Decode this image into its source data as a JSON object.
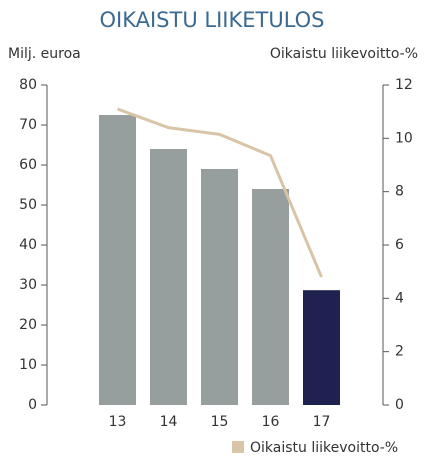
{
  "chart_data": {
    "type": "bar",
    "title": "OIKAISTU LIIKETULOS",
    "y_label": "Milj. euroa",
    "y2_label": "Oikaistu liikevoitto-%",
    "categories": [
      "13",
      "14",
      "15",
      "16",
      "17"
    ],
    "series": [
      {
        "type": "bar",
        "colors": [
          "#979e9e",
          "#979e9e",
          "#979e9e",
          "#979e9e",
          "#1f2150"
        ],
        "values": [
          72.5,
          64,
          59,
          54,
          28.7
        ]
      },
      {
        "type": "line",
        "name": "Oikaistu liikevoitto-%",
        "color": "#d9c4a8",
        "axis": "y2",
        "values": [
          11.1,
          10.4,
          10.15,
          9.35,
          4.8
        ]
      }
    ],
    "ylim": [
      0,
      80
    ],
    "yticks": [
      0,
      10,
      20,
      30,
      40,
      50,
      60,
      70,
      80
    ],
    "y2lim": [
      0,
      12
    ],
    "y2ticks": [
      0,
      2,
      4,
      6,
      8,
      10,
      12
    ],
    "legend": "bottom-right"
  }
}
